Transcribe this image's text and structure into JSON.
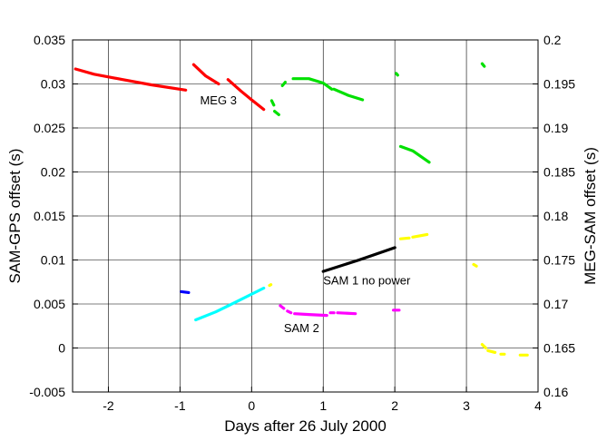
{
  "chart_data": {
    "type": "scatter",
    "xlabel": "Days after 26 July 2000",
    "ylabel": "SAM-GPS offset (s)",
    "ylabel_right": "MEG-SAM offset (s)",
    "xlim": [
      -2.5,
      4
    ],
    "ylim": [
      -0.005,
      0.035
    ],
    "ylim_right": [
      0.16,
      0.2
    ],
    "x_ticks": [
      -2,
      -1,
      0,
      1,
      2,
      3,
      4
    ],
    "x_tick_labels": [
      "-2",
      "-1",
      "0",
      "1",
      "2",
      "3",
      "4"
    ],
    "y_ticks": [
      -0.005,
      0,
      0.005,
      0.01,
      0.015,
      0.02,
      0.025,
      0.03,
      0.035
    ],
    "y_tick_labels": [
      "-0.005",
      "0",
      "0.005",
      "0.01",
      "0.015",
      "0.02",
      "0.025",
      "0.03",
      "0.035"
    ],
    "y_ticks_right": [
      0.16,
      0.165,
      0.17,
      0.175,
      0.18,
      0.185,
      0.19,
      0.195,
      0.2
    ],
    "y_tick_labels_right": [
      "0.16",
      "0.165",
      "0.17",
      "0.175",
      "0.18",
      "0.185",
      "0.19",
      "0.195",
      "0.2"
    ],
    "grid": true,
    "series": [
      {
        "color": "#ff0000",
        "axis": "left",
        "segments": [
          [
            [
              -2.46,
              0.0317
            ],
            [
              -2.2,
              0.0311
            ],
            [
              -1.8,
              0.0305
            ],
            [
              -1.4,
              0.0299
            ],
            [
              -0.92,
              0.0293
            ]
          ],
          [
            [
              -0.81,
              0.0322
            ],
            [
              -0.64,
              0.0309
            ],
            [
              -0.46,
              0.03
            ]
          ],
          [
            [
              -0.33,
              0.0305
            ],
            [
              -0.15,
              0.0292
            ],
            [
              0.0,
              0.0282
            ],
            [
              0.17,
              0.0271
            ]
          ]
        ]
      },
      {
        "color": "#00e000",
        "axis": "left",
        "segments": [
          [
            [
              0.28,
              0.0281
            ],
            [
              0.31,
              0.0276
            ]
          ],
          [
            [
              0.32,
              0.0269
            ],
            [
              0.38,
              0.0265
            ]
          ],
          [
            [
              0.43,
              0.0298
            ],
            [
              0.47,
              0.0302
            ]
          ],
          [
            [
              0.58,
              0.0306
            ],
            [
              0.8,
              0.0306
            ],
            [
              1.0,
              0.0301
            ],
            [
              1.12,
              0.0294
            ]
          ],
          [
            [
              1.15,
              0.0294
            ],
            [
              1.35,
              0.0287
            ],
            [
              1.55,
              0.0282
            ]
          ],
          [
            [
              2.02,
              0.0312
            ],
            [
              2.04,
              0.031
            ]
          ],
          [
            [
              2.08,
              0.0229
            ],
            [
              2.25,
              0.0224
            ],
            [
              2.48,
              0.0211
            ]
          ],
          [
            [
              3.22,
              0.0323
            ],
            [
              3.25,
              0.032
            ]
          ]
        ]
      },
      {
        "color": "#0000ff",
        "axis": "left",
        "segments": [
          [
            [
              -0.98,
              0.0064
            ],
            [
              -0.88,
              0.0063
            ]
          ]
        ]
      },
      {
        "color": "#00ffff",
        "axis": "left",
        "segments": [
          [
            [
              -0.78,
              0.0032
            ],
            [
              -0.5,
              0.0041
            ],
            [
              -0.2,
              0.0053
            ],
            [
              0.17,
              0.0068
            ]
          ]
        ]
      },
      {
        "color": "#ffff00",
        "axis": "left",
        "segments": [
          [
            [
              0.25,
              0.0071
            ],
            [
              0.27,
              0.0072
            ]
          ],
          [
            [
              2.08,
              0.0124
            ],
            [
              2.2,
              0.0125
            ]
          ],
          [
            [
              2.25,
              0.0126
            ],
            [
              2.45,
              0.0129
            ]
          ],
          [
            [
              3.1,
              0.0095
            ],
            [
              3.14,
              0.0093
            ]
          ],
          [
            [
              3.22,
              0.0004
            ],
            [
              3.27,
              0.0
            ]
          ],
          [
            [
              3.3,
              -0.0003
            ],
            [
              3.4,
              -0.0005
            ]
          ],
          [
            [
              3.48,
              -0.0007
            ],
            [
              3.53,
              -0.0007
            ]
          ],
          [
            [
              3.75,
              -0.0008
            ],
            [
              3.85,
              -0.0008
            ]
          ]
        ]
      },
      {
        "color": "#ff00ff",
        "axis": "left",
        "segments": [
          [
            [
              0.4,
              0.0048
            ],
            [
              0.45,
              0.0045
            ]
          ],
          [
            [
              0.5,
              0.0042
            ],
            [
              0.55,
              0.004
            ]
          ],
          [
            [
              0.6,
              0.0039
            ],
            [
              0.8,
              0.0038
            ],
            [
              1.05,
              0.0037
            ]
          ],
          [
            [
              1.1,
              0.004
            ],
            [
              1.15,
              0.004
            ]
          ],
          [
            [
              1.2,
              0.004
            ],
            [
              1.45,
              0.0039
            ]
          ],
          [
            [
              1.98,
              0.0043
            ],
            [
              2.06,
              0.0043
            ]
          ]
        ]
      },
      {
        "color": "#000000",
        "axis": "left",
        "segments": [
          [
            [
              1.0,
              0.0087
            ],
            [
              1.5,
              0.01
            ],
            [
              2.0,
              0.0114
            ]
          ]
        ]
      }
    ],
    "annotations": [
      {
        "text": "MEG 3",
        "x": -0.72,
        "y": 0.0277
      },
      {
        "text": "SAM 1 no power",
        "x": 1.0,
        "y": 0.0072
      },
      {
        "text": "SAM 2",
        "x": 0.45,
        "y": 0.0018
      }
    ]
  }
}
